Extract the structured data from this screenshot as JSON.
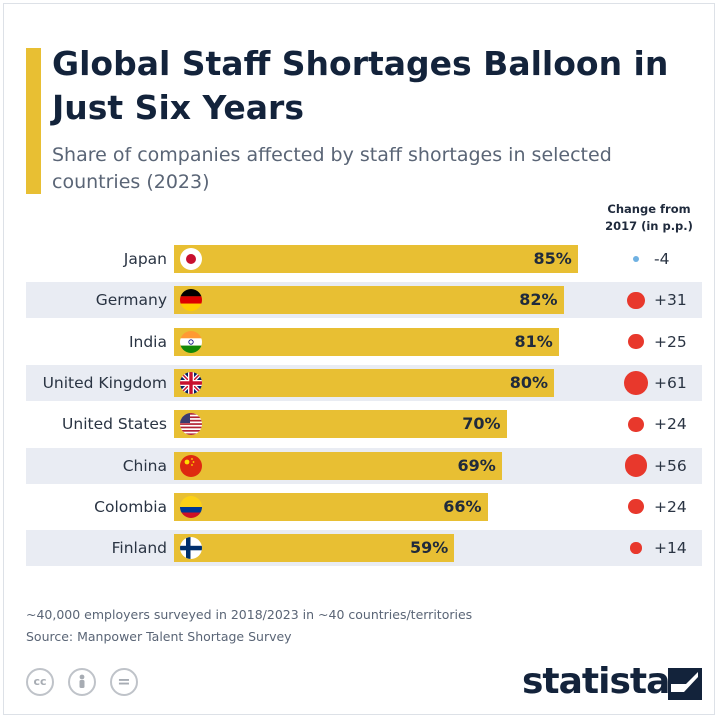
{
  "header": {
    "title": "Global Staff Shortages Balloon in Just Six Years",
    "subtitle": "Share of companies affected by staff shortages in selected countries (2023)",
    "change_header": "Change from 2017 (in p.p.)"
  },
  "chart_data": {
    "type": "bar",
    "orientation": "horizontal",
    "title": "Global Staff Shortages Balloon in Just Six Years",
    "subtitle": "Share of companies affected by staff shortages in selected countries (2023)",
    "categories": [
      "Japan",
      "Germany",
      "India",
      "United Kingdom",
      "United States",
      "China",
      "Colombia",
      "Finland"
    ],
    "series": [
      {
        "values": [
          85,
          82,
          81,
          80,
          70,
          69,
          66,
          59
        ]
      },
      {
        "name": "Change from 2017 (in p.p.)",
        "values": [
          -4,
          31,
          25,
          61,
          24,
          56,
          24,
          14
        ]
      }
    ],
    "value_labels": [
      "85%",
      "82%",
      "81%",
      "80%",
      "70%",
      "69%",
      "66%",
      "59%"
    ],
    "change_labels": [
      "-4",
      "+31",
      "+25",
      "+61",
      "+24",
      "+56",
      "+24",
      "+14"
    ],
    "flags": [
      "japan-flag-icon",
      "germany-flag-icon",
      "india-flag-icon",
      "uk-flag-icon",
      "usa-flag-icon",
      "china-flag-icon",
      "colombia-flag-icon",
      "finland-flag-icon"
    ],
    "xlim": [
      0,
      100
    ],
    "colors": {
      "bar": "#e8bf33",
      "positive_dot": "#e8382c",
      "negative_dot": "#6fb1e2"
    }
  },
  "footer": {
    "note": "~40,000 employers surveyed in 2018/2023 in ~40 countries/territories",
    "source": "Source: Manpower Talent Shortage Survey",
    "brand": "statista",
    "license_icons": [
      "cc-icon",
      "attribution-icon",
      "no-derivatives-icon"
    ],
    "license_glyphs": [
      "cc",
      "",
      "="
    ]
  }
}
